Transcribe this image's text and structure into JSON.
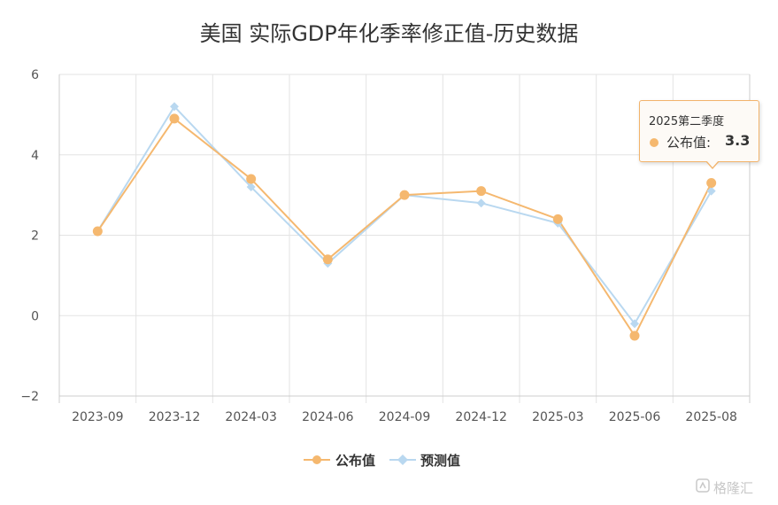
{
  "colors": {
    "published": "#f5b86f",
    "forecast": "#b9d8f0",
    "grid": "#e3e3e3",
    "axis": "#cccccc"
  },
  "chart_data": {
    "type": "line",
    "title": "美国 实际GDP年化季率修正值-历史数据",
    "categories": [
      "2023-09",
      "2023-12",
      "2024-03",
      "2024-06",
      "2024-09",
      "2024-12",
      "2025-03",
      "2025-06",
      "2025-08"
    ],
    "series": [
      {
        "name": "公布值",
        "values": [
          2.1,
          4.9,
          3.4,
          1.4,
          3.0,
          3.1,
          2.4,
          -0.5,
          3.3
        ]
      },
      {
        "name": "预测值",
        "values": [
          2.1,
          5.2,
          3.2,
          1.3,
          3.0,
          2.8,
          2.3,
          -0.2,
          3.1
        ]
      }
    ],
    "ylim": [
      -2,
      6
    ],
    "yticks": [
      "6",
      "4",
      "2",
      "0",
      "−2"
    ],
    "ytick_values": [
      6,
      4,
      2,
      0,
      -2
    ],
    "grid": true,
    "legend_position": "bottom"
  },
  "tooltip": {
    "title": "2025第二季度",
    "label": "公布值:",
    "value": "3.3"
  },
  "watermark": "格隆汇"
}
